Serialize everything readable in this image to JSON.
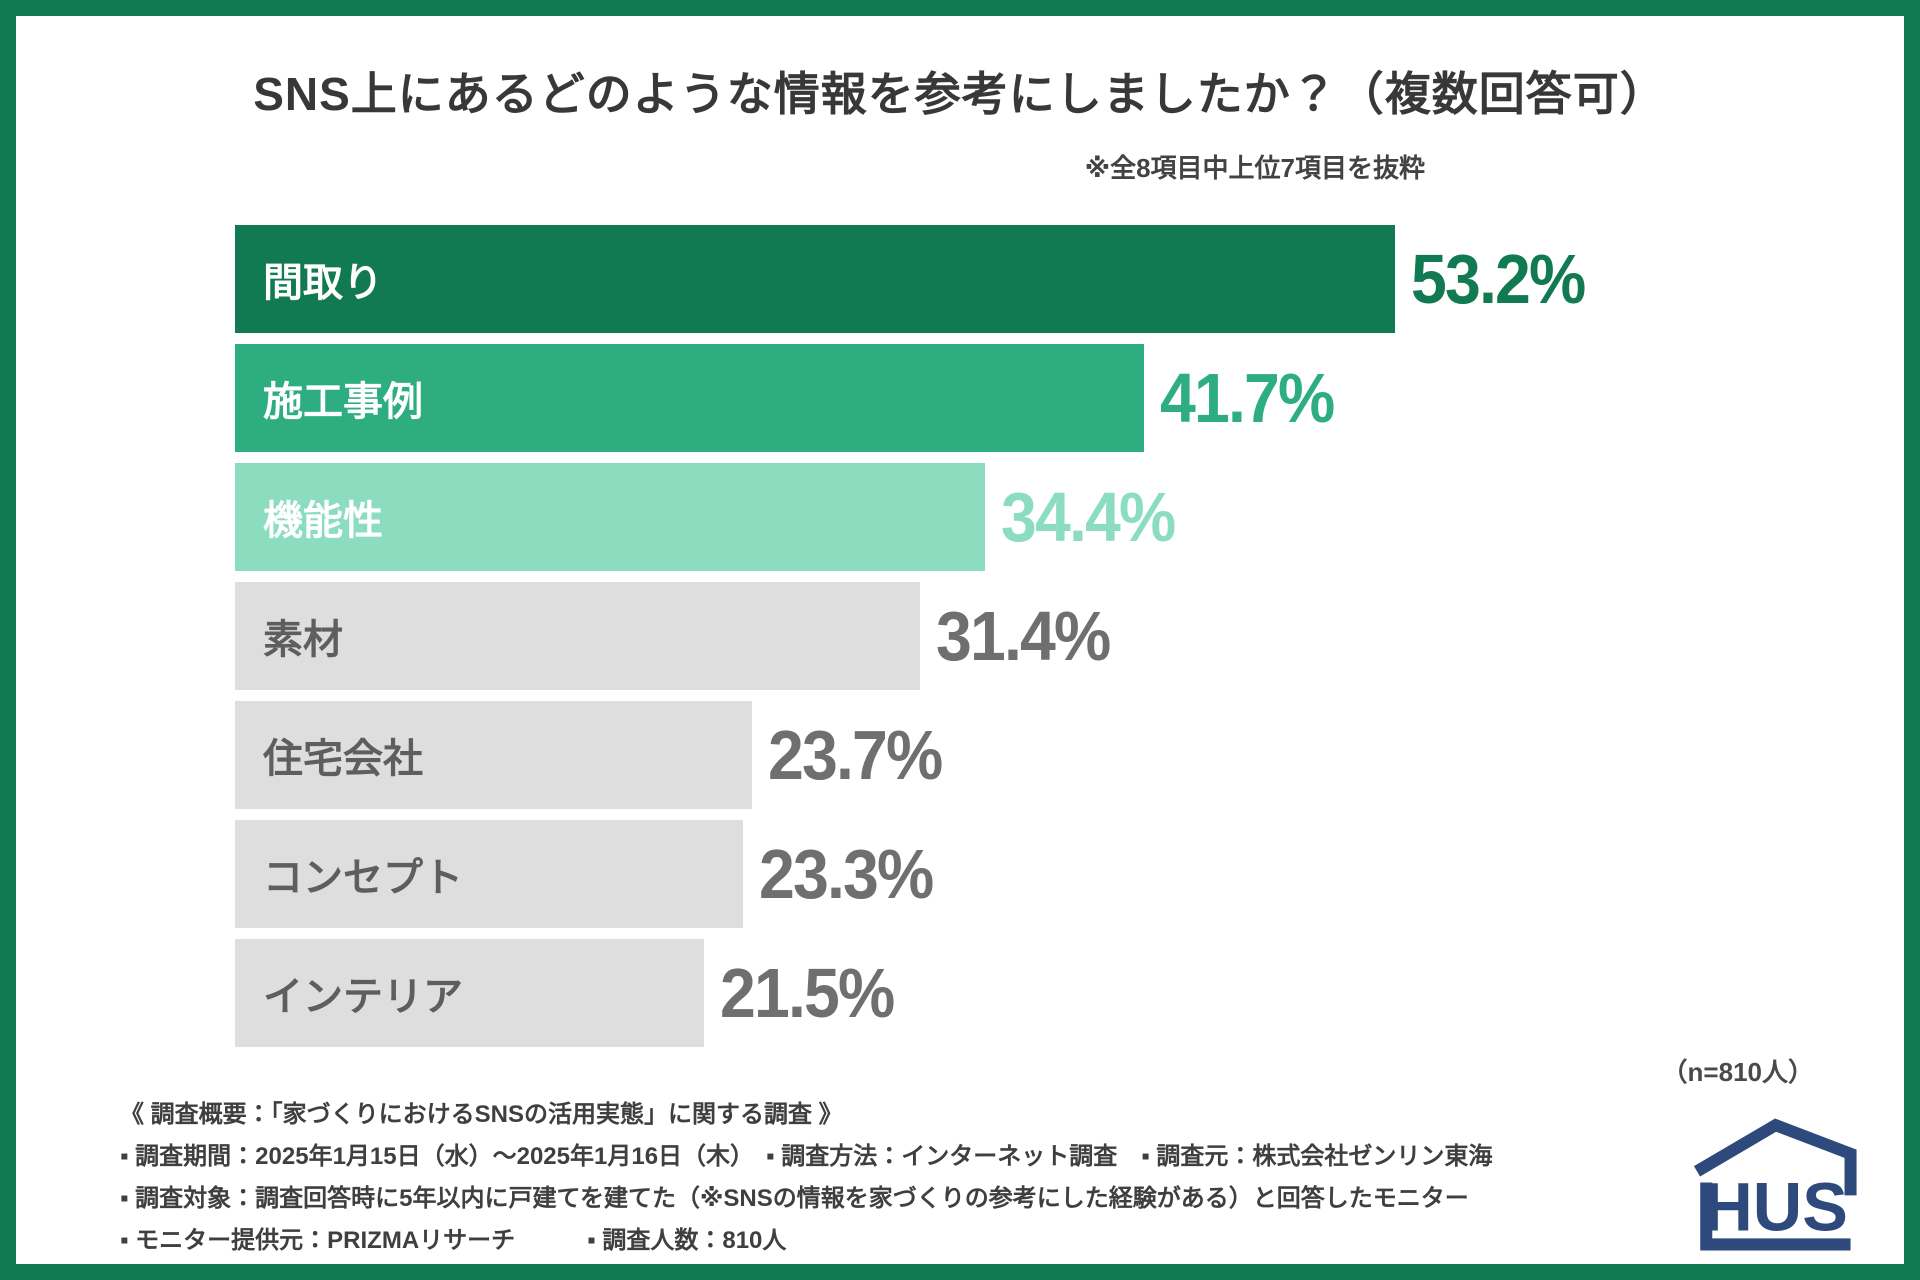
{
  "header": {
    "title": "SNS上にあるどのような情報を参考にしましたか？（複数回答可）",
    "excerpt_note": "※全8項目中上位7項目を抜粋"
  },
  "chart_data": {
    "type": "bar",
    "orientation": "horizontal",
    "title": "SNS上にあるどのような情報を参考にしましたか？（複数回答可）",
    "categories": [
      "間取り",
      "施工事例",
      "機能性",
      "素材",
      "住宅会社",
      "コンセプト",
      "インテリア"
    ],
    "values": [
      53.2,
      41.7,
      34.4,
      31.4,
      23.7,
      23.3,
      21.5
    ],
    "value_labels": [
      "53.2%",
      "41.7%",
      "34.4%",
      "31.4%",
      "23.7%",
      "23.3%",
      "21.5%"
    ],
    "bar_colors": [
      "#117A53",
      "#2EAE80",
      "#8CDCBF",
      "#DEDEDE",
      "#DEDEDE",
      "#DEDEDE",
      "#DEDEDE"
    ],
    "category_label_colors": [
      "#FFFFFF",
      "#FFFFFF",
      "#FFFFFF",
      "#5E5E5E",
      "#5E5E5E",
      "#5E5E5E",
      "#5E5E5E"
    ],
    "value_label_colors": [
      "#117A53",
      "#2EAE80",
      "#8CDCBF",
      "#6F6F6F",
      "#6F6F6F",
      "#6F6F6F",
      "#6F6F6F"
    ],
    "xlim": [
      0,
      60
    ],
    "grid": false,
    "legend": false,
    "sample_size_note": "（n=810人）"
  },
  "footer": {
    "lines": [
      "《 調査概要：「家づくりにおけるSNSの活用実態」に関する調査 》",
      "▪ 調査期間：2025年1月15日（水）〜2025年1月16日（木）　▪ 調査方法：インターネット調査　▪ 調査元：株式会社ゼンリン東海",
      "▪ 調査対象：調査回答時に5年以内に戸建てを建てた（※SNSの情報を家づくりの参考にした経験がある）と回答したモニター",
      "▪ モニター提供元：PRIZMAリサーチ　　　▪ 調査人数：810人"
    ],
    "logo_text": "HUS",
    "logo_color": "#2E4A7C"
  },
  "colors": {
    "frame_green": "#117A53",
    "dark_green": "#117A53",
    "mid_green": "#2EAE80",
    "light_green": "#8CDCBF",
    "gray_bar": "#DEDEDE",
    "logo_navy": "#2E4A7C"
  }
}
